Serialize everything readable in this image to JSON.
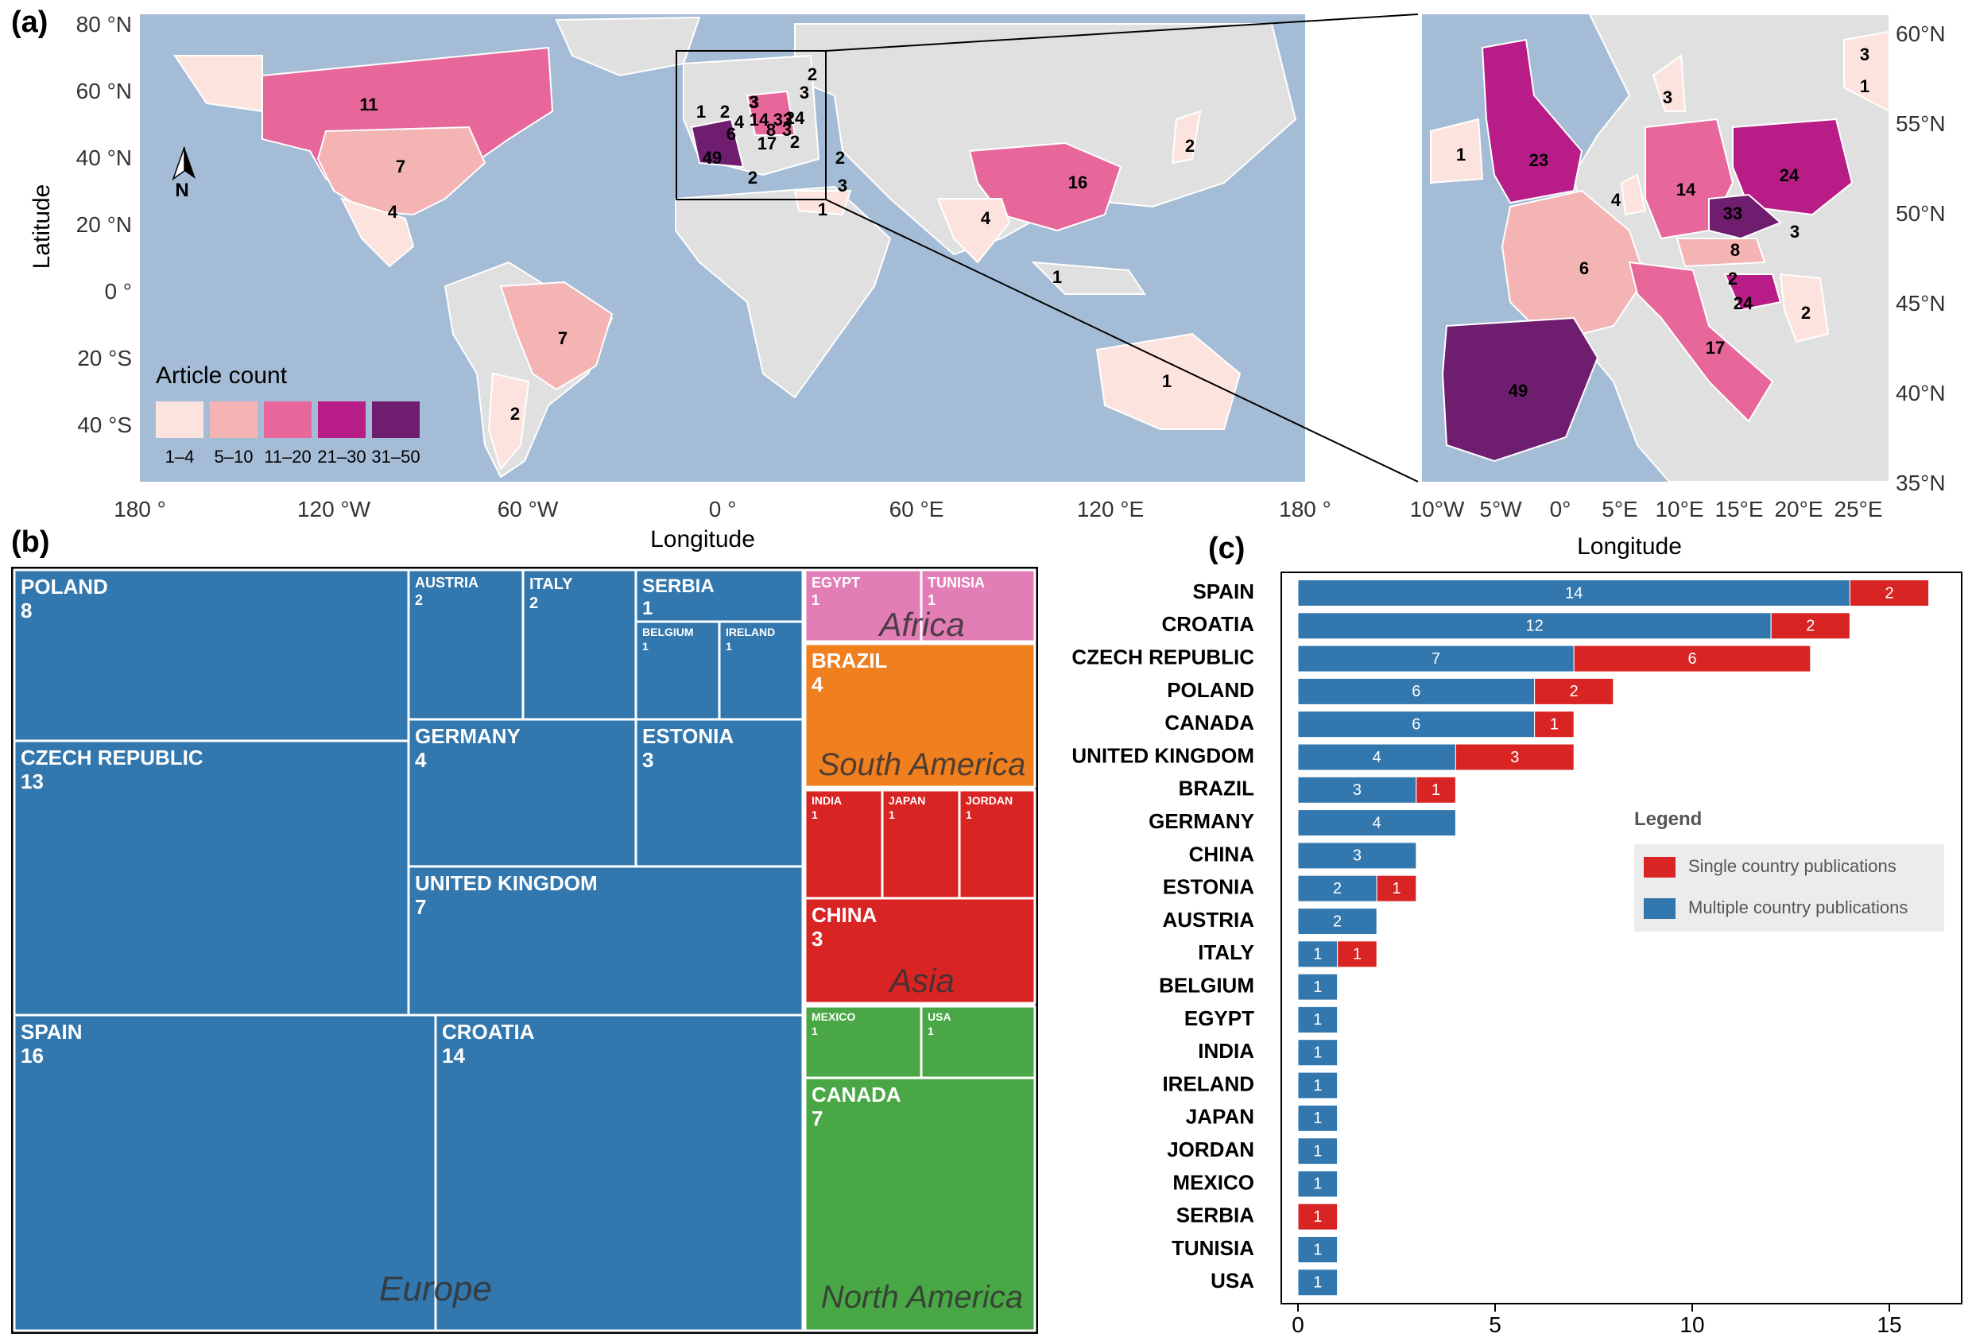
{
  "panels": {
    "a": "(a)",
    "b": "(b)",
    "c": "(c)"
  },
  "map": {
    "ylabel": "Latitude",
    "xlabel": "Longitude",
    "lon_ticks": [
      "180 °",
      "120 °W",
      "60 °W",
      "0 °",
      "60 °E",
      "120 °E",
      "180 °"
    ],
    "lat_ticks": [
      "80 °N",
      "60 °N",
      "40 °N",
      "20 °N",
      "0 °",
      "20 °S",
      "40 °S"
    ],
    "north": "N",
    "legend_title": "Article count",
    "legend_bins": [
      {
        "label": "1–4",
        "color": "#fde3dd"
      },
      {
        "label": "5–10",
        "color": "#f4b4b4"
      },
      {
        "label": "11–20",
        "color": "#e8679a"
      },
      {
        "label": "21–30",
        "color": "#b81c86"
      },
      {
        "label": "31–50",
        "color": "#6f1d6f"
      }
    ],
    "ocean": "#a5bcd6",
    "land": "#e0e0e0",
    "world_labels": [
      {
        "text": "11"
      },
      {
        "text": "7"
      },
      {
        "text": "4"
      },
      {
        "text": "7"
      },
      {
        "text": "2"
      },
      {
        "text": "16"
      },
      {
        "text": "4"
      },
      {
        "text": "1"
      },
      {
        "text": "2"
      },
      {
        "text": "1"
      },
      {
        "text": "1"
      },
      {
        "text": "2"
      },
      {
        "text": "2"
      },
      {
        "text": "3"
      },
      {
        "text": "2"
      },
      {
        "text": "3"
      },
      {
        "text": "3"
      },
      {
        "text": "1"
      },
      {
        "text": "2"
      },
      {
        "text": "3"
      },
      {
        "text": "4"
      },
      {
        "text": "14"
      },
      {
        "text": "33"
      },
      {
        "text": "24"
      },
      {
        "text": "6"
      },
      {
        "text": "8"
      },
      {
        "text": "3"
      },
      {
        "text": "2"
      },
      {
        "text": "17"
      },
      {
        "text": "49"
      }
    ],
    "inset": {
      "xlabel": "Longitude",
      "lon_ticks": [
        "10°W",
        "5°W",
        "0°",
        "5°E",
        "10°E",
        "15°E",
        "20°E",
        "25°E"
      ],
      "lat_ticks": [
        "60°N",
        "55°N",
        "50°N",
        "45°N",
        "40°N",
        "35°N"
      ],
      "labels": [
        {
          "text": "3"
        },
        {
          "text": "1"
        },
        {
          "text": "3"
        },
        {
          "text": "1"
        },
        {
          "text": "23"
        },
        {
          "text": "4"
        },
        {
          "text": "14"
        },
        {
          "text": "24"
        },
        {
          "text": "33"
        },
        {
          "text": "3"
        },
        {
          "text": "6"
        },
        {
          "text": "8"
        },
        {
          "text": "2"
        },
        {
          "text": "24"
        },
        {
          "text": "2"
        },
        {
          "text": "17"
        },
        {
          "text": "49"
        }
      ]
    }
  },
  "treemap": {
    "regions": [
      {
        "name": "Europe",
        "color": "#3277ae"
      },
      {
        "name": "Africa",
        "color": "#e27eb5"
      },
      {
        "name": "South America",
        "color": "#f07f1f"
      },
      {
        "name": "Asia",
        "color": "#d92424"
      },
      {
        "name": "North America",
        "color": "#49a845"
      }
    ],
    "cells": [
      {
        "name": "POLAND",
        "value": "8",
        "region": "Europe"
      },
      {
        "name": "CZECH REPUBLIC",
        "value": "13",
        "region": "Europe"
      },
      {
        "name": "SPAIN",
        "value": "16",
        "region": "Europe"
      },
      {
        "name": "CROATIA",
        "value": "14",
        "region": "Europe"
      },
      {
        "name": "AUSTRIA",
        "value": "2",
        "region": "Europe"
      },
      {
        "name": "ITALY",
        "value": "2",
        "region": "Europe"
      },
      {
        "name": "SERBIA",
        "value": "1",
        "region": "Europe"
      },
      {
        "name": "BELGIUM",
        "value": "1",
        "region": "Europe"
      },
      {
        "name": "IRELAND",
        "value": "1",
        "region": "Europe"
      },
      {
        "name": "GERMANY",
        "value": "4",
        "region": "Europe"
      },
      {
        "name": "ESTONIA",
        "value": "3",
        "region": "Europe"
      },
      {
        "name": "UNITED KINGDOM",
        "value": "7",
        "region": "Europe"
      },
      {
        "name": "EGYPT",
        "value": "1",
        "region": "Africa"
      },
      {
        "name": "TUNISIA",
        "value": "1",
        "region": "Africa"
      },
      {
        "name": "BRAZIL",
        "value": "4",
        "region": "South America"
      },
      {
        "name": "INDIA",
        "value": "1",
        "region": "Asia"
      },
      {
        "name": "JAPAN",
        "value": "1",
        "region": "Asia"
      },
      {
        "name": "JORDAN",
        "value": "1",
        "region": "Asia"
      },
      {
        "name": "CHINA",
        "value": "3",
        "region": "Asia"
      },
      {
        "name": "MEXICO",
        "value": "1",
        "region": "North America"
      },
      {
        "name": "USA",
        "value": "1",
        "region": "North America"
      },
      {
        "name": "CANADA",
        "value": "7",
        "region": "North America"
      }
    ]
  },
  "chart_data": {
    "type": "bar",
    "orientation": "horizontal",
    "stacked": true,
    "categories": [
      "SPAIN",
      "CROATIA",
      "CZECH REPUBLIC",
      "POLAND",
      "CANADA",
      "UNITED KINGDOM",
      "BRAZIL",
      "GERMANY",
      "CHINA",
      "ESTONIA",
      "AUSTRIA",
      "ITALY",
      "BELGIUM",
      "EGYPT",
      "INDIA",
      "IRELAND",
      "JAPAN",
      "JORDAN",
      "MEXICO",
      "SERBIA",
      "TUNISIA",
      "USA"
    ],
    "series": [
      {
        "name": "Multiple country publications",
        "color": "#3277ae",
        "values": [
          14,
          12,
          7,
          6,
          6,
          4,
          3,
          4,
          3,
          2,
          2,
          1,
          1,
          1,
          1,
          1,
          1,
          1,
          1,
          0,
          1,
          1
        ]
      },
      {
        "name": "Single country publications",
        "color": "#d92424",
        "values": [
          2,
          2,
          6,
          2,
          1,
          3,
          1,
          0,
          0,
          1,
          0,
          1,
          0,
          0,
          0,
          0,
          0,
          0,
          0,
          1,
          0,
          0
        ]
      }
    ],
    "xlim": [
      0,
      17
    ],
    "xticks": [
      "0",
      "5",
      "10",
      "15"
    ],
    "legend_title": "Legend",
    "legend_position": "right"
  }
}
